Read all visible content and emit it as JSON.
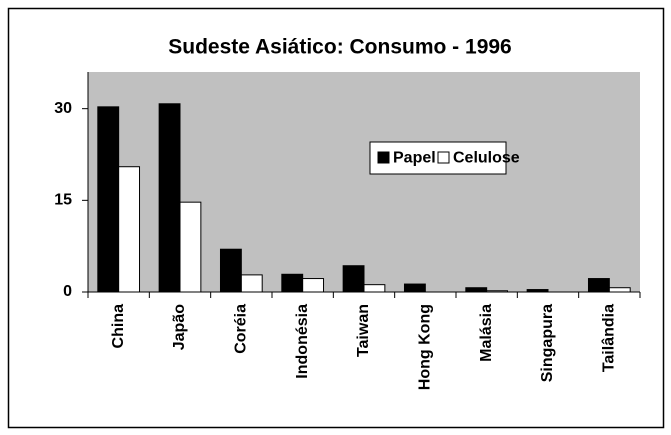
{
  "chart_data": {
    "type": "bar",
    "title": "Sudeste Asiático: Consumo - 1996",
    "categories": [
      "China",
      "Japão",
      "Coréia",
      "Indonésia",
      "Taiwan",
      "Hong Kong",
      "Malásia",
      "Singapura",
      "Tailândia"
    ],
    "series": [
      {
        "name": "Papel",
        "color": "#000000",
        "values": [
          30.3,
          30.8,
          7,
          2.9,
          4.3,
          1.3,
          0.7,
          0.4,
          2.2
        ]
      },
      {
        "name": "Celulose",
        "color": "#ffffff",
        "values": [
          20.5,
          14.7,
          2.8,
          2.2,
          1.2,
          0,
          0.2,
          0,
          0.7
        ]
      }
    ],
    "ylim": [
      0,
      36
    ],
    "yticks": [
      0,
      15,
      30
    ],
    "grid": false,
    "legend": "upper right"
  }
}
